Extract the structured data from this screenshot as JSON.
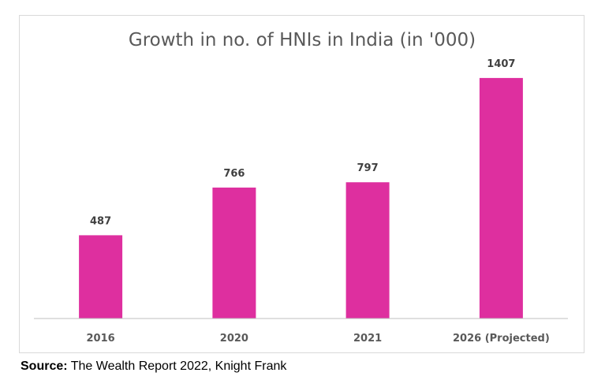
{
  "chart_data": {
    "type": "bar",
    "title": "Growth in no. of HNIs in India (in '000)",
    "categories": [
      "2016",
      "2020",
      "2021",
      "2026 (Projected)"
    ],
    "values": [
      487,
      766,
      797,
      1407
    ],
    "data_labels": [
      "487",
      "766",
      "797",
      "1407"
    ],
    "xlabel": "",
    "ylabel": "",
    "ylim": [
      0,
      1600
    ],
    "grid": false,
    "legend": "none",
    "bar_color": "#de2f9f",
    "axis_color": "#bfbfbf"
  },
  "source": {
    "label": "Source:",
    "text": " The Wealth Report 2022, Knight Frank"
  }
}
